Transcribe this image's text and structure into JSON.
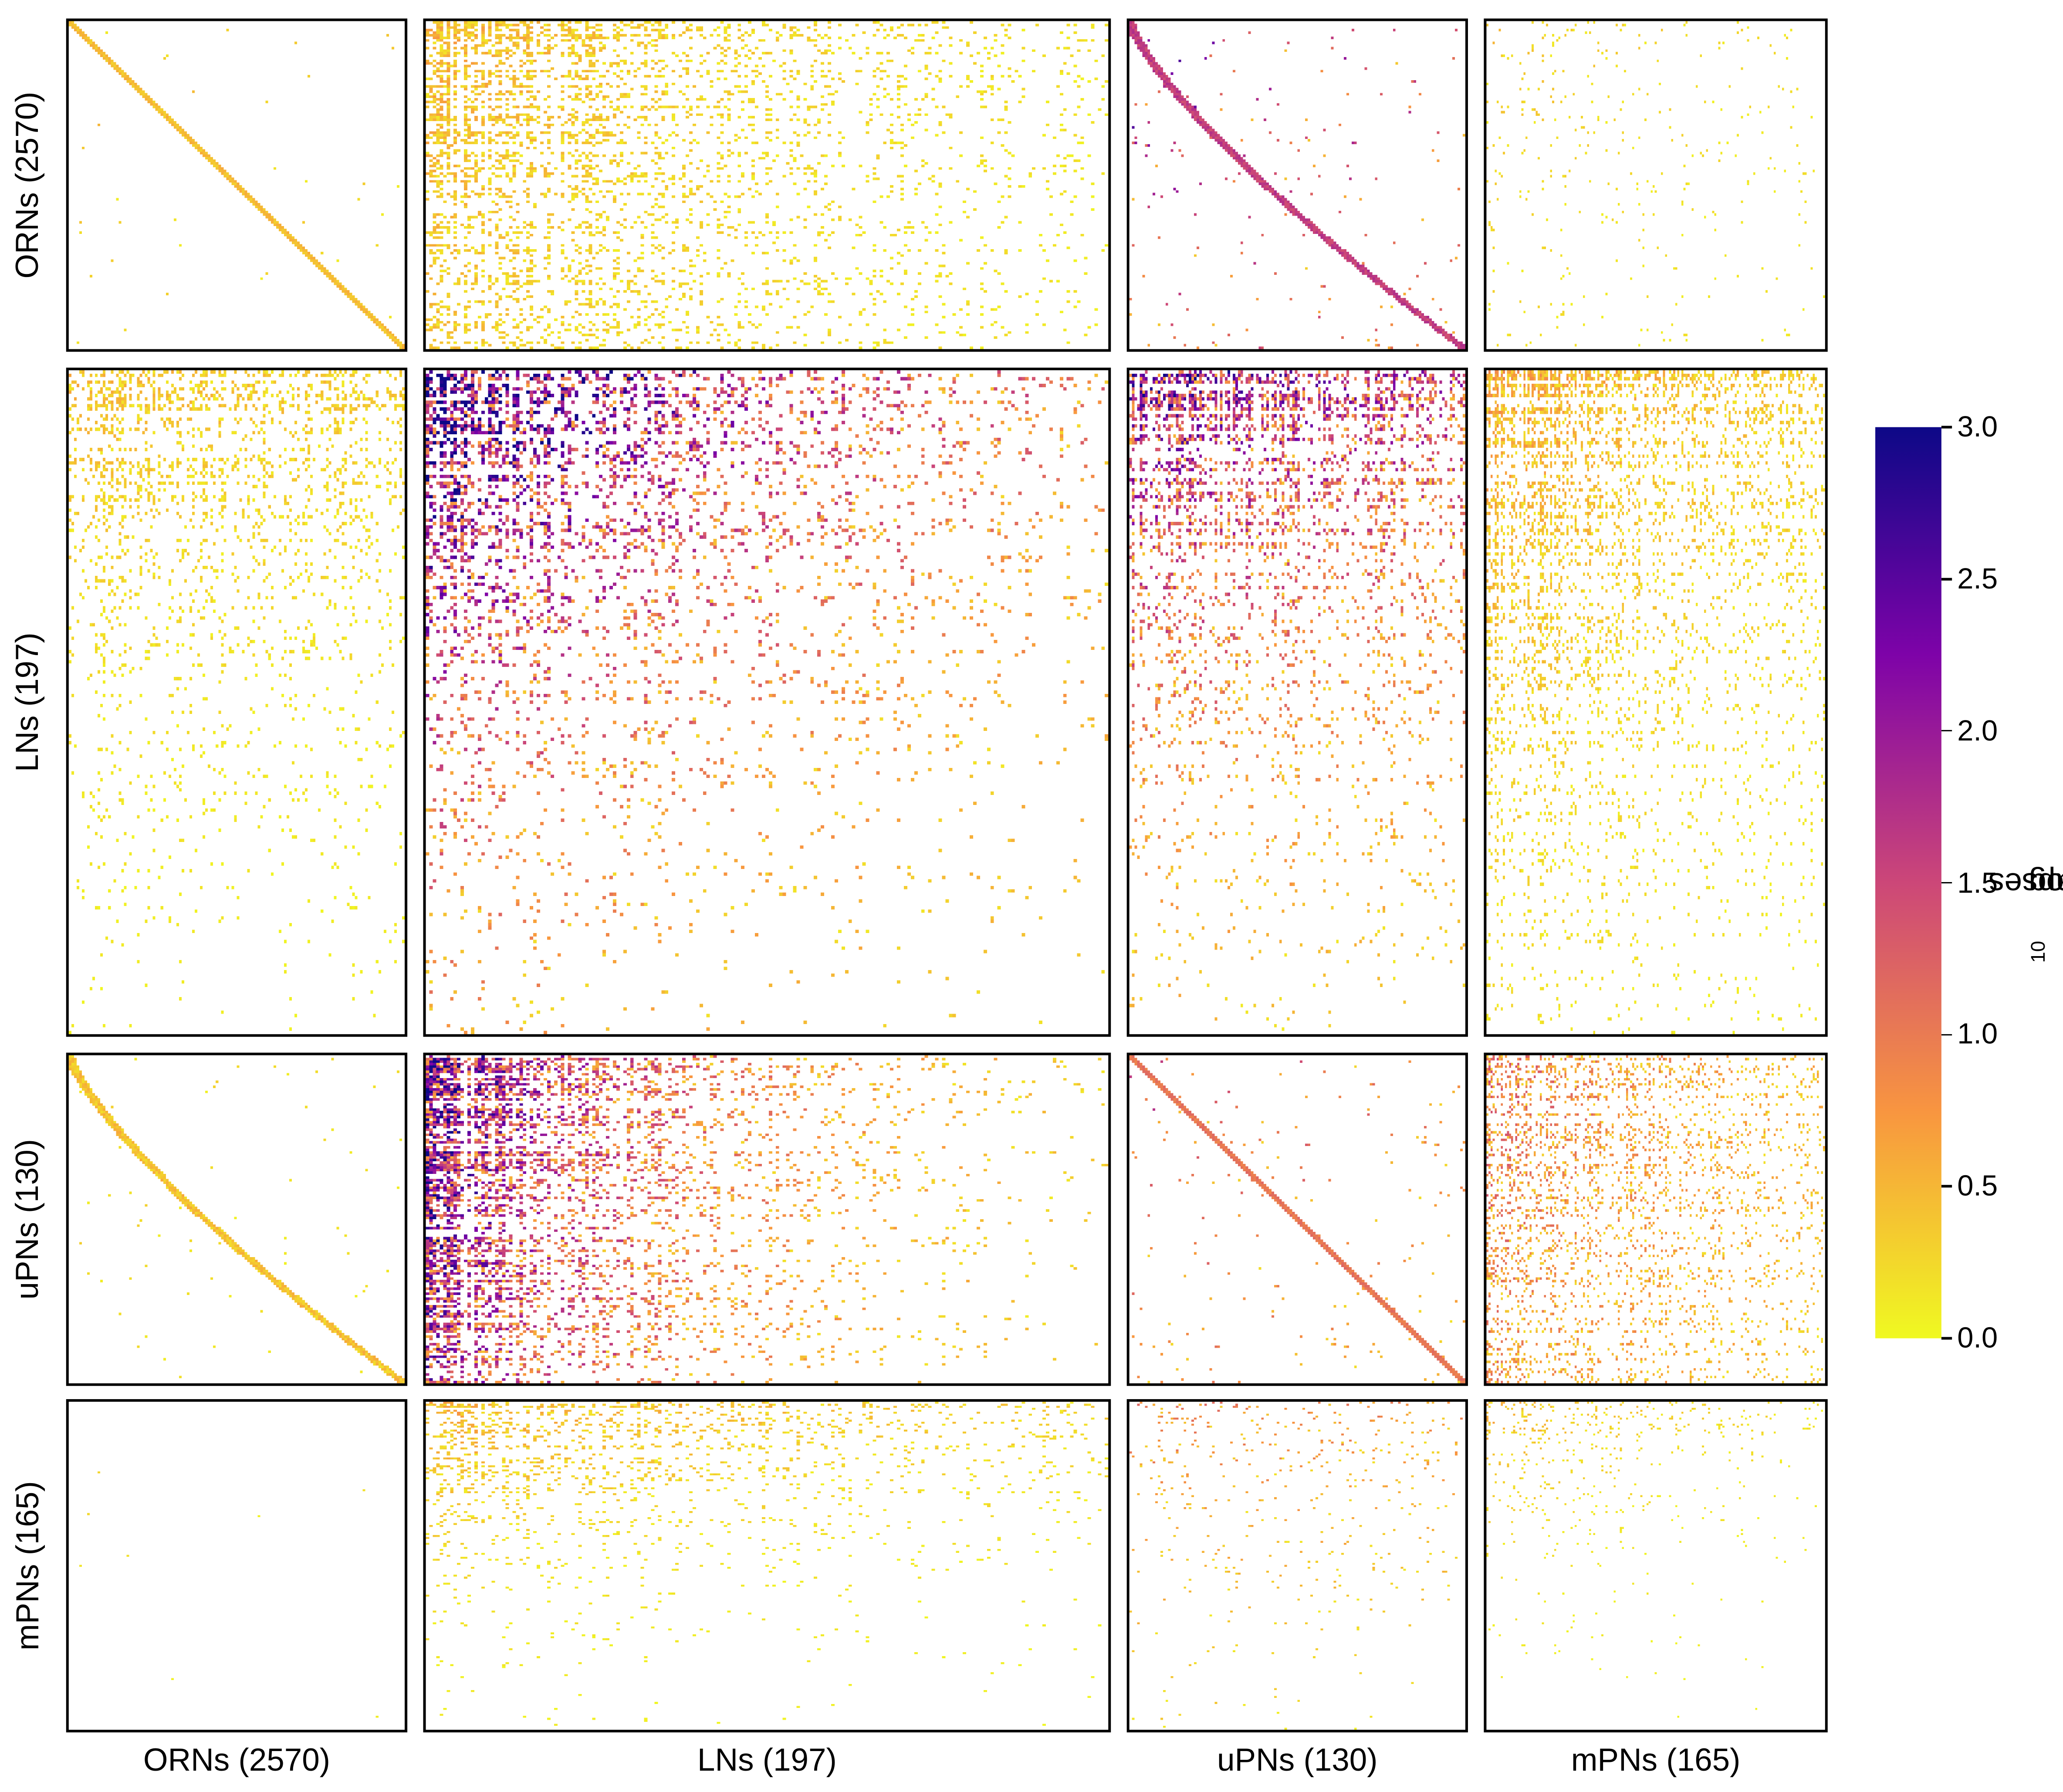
{
  "chart_data": {
    "type": "heatmap",
    "title": "",
    "groups": [
      {
        "name": "ORNs",
        "count": 2570,
        "label": "ORNs (2570)"
      },
      {
        "name": "LNs",
        "count": 197,
        "label": "LNs (197)"
      },
      {
        "name": "uPNs",
        "count": 130,
        "label": "uPNs (130)"
      },
      {
        "name": "mPNs",
        "count": 165,
        "label": "mPNs (165)"
      }
    ],
    "row_labels": [
      "ORNs (2570)",
      "LNs (197)",
      "uPNs (130)",
      "mPNs (165)"
    ],
    "col_labels": [
      "ORNs (2570)",
      "LNs (197)",
      "uPNs (130)",
      "mPNs (165)"
    ],
    "colorbar": {
      "label_main": "log",
      "label_sub": "10",
      "label_rest": " # synapses",
      "range": [
        0.0,
        3.0
      ],
      "ticks": [
        "0.0",
        "0.5",
        "1.0",
        "1.5",
        "2.0",
        "2.5",
        "3.0"
      ],
      "colormap": "plasma_r",
      "colors": [
        "#f0f921",
        "#f89540",
        "#cc4778",
        "#7e03a8",
        "#0d0887"
      ]
    }
  }
}
